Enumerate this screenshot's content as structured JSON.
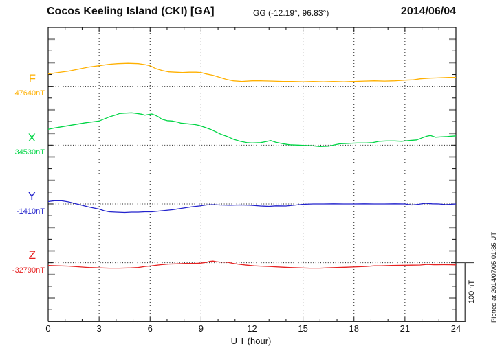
{
  "header": {
    "station_title": "Cocos Keeling Island (CKI)  [GA]",
    "coordinates": "GG (-12.19°,  96.83°)",
    "date": "2014/06/04"
  },
  "footer": {
    "plotted_at": "Plotted at 2014/07/05 01:35 UT"
  },
  "chart_data": {
    "type": "line",
    "title": "Cocos Keeling Island (CKI) [GA] magnetogram for 2014/06/04",
    "xlabel": "U T (hour)",
    "x_range": [
      0,
      24
    ],
    "x_ticks": [
      0,
      3,
      6,
      9,
      12,
      15,
      18,
      21,
      24
    ],
    "grid": "dotted vertical at 3h intervals, dotted horizontal at each component baseline",
    "scale_bar": {
      "label": "100 nT",
      "nT": 100
    },
    "points_format": "[UT_hour, nT_offset_from_baseline]",
    "series": [
      {
        "name": "F",
        "color": "#ffb000",
        "baseline_label": "47640nT",
        "baseline_nT": 47640,
        "points": [
          [
            0,
            21
          ],
          [
            0.6,
            23.4
          ],
          [
            1.2,
            25.7
          ],
          [
            1.8,
            29.2
          ],
          [
            2.4,
            32.7
          ],
          [
            3,
            35
          ],
          [
            3.6,
            37.4
          ],
          [
            4.1,
            38.5
          ],
          [
            4.7,
            39.1
          ],
          [
            5.3,
            38.5
          ],
          [
            5.7,
            36.8
          ],
          [
            6,
            35
          ],
          [
            6.3,
            30.4
          ],
          [
            6.7,
            26.9
          ],
          [
            7.1,
            24.5
          ],
          [
            7.5,
            23.9
          ],
          [
            7.9,
            23.4
          ],
          [
            8.3,
            23.9
          ],
          [
            8.7,
            23.9
          ],
          [
            9,
            23.4
          ],
          [
            9.3,
            21
          ],
          [
            9.7,
            18.7
          ],
          [
            10.1,
            15.2
          ],
          [
            10.5,
            11.7
          ],
          [
            10.9,
            9.3
          ],
          [
            11.4,
            8.2
          ],
          [
            12,
            9.3
          ],
          [
            12.5,
            9.3
          ],
          [
            13.2,
            8.8
          ],
          [
            13.8,
            8.2
          ],
          [
            14.4,
            8.2
          ],
          [
            15,
            7.6
          ],
          [
            15.6,
            8.2
          ],
          [
            16.2,
            7.6
          ],
          [
            16.8,
            8.2
          ],
          [
            17.4,
            7.6
          ],
          [
            18,
            8.2
          ],
          [
            18.6,
            8.8
          ],
          [
            19.2,
            9.3
          ],
          [
            19.8,
            8.8
          ],
          [
            20.4,
            9.3
          ],
          [
            21,
            10.5
          ],
          [
            21.5,
            11.1
          ],
          [
            21.9,
            12.8
          ],
          [
            22.5,
            14
          ],
          [
            23.1,
            14.6
          ],
          [
            23.6,
            15.2
          ],
          [
            24,
            15.2
          ]
        ]
      },
      {
        "name": "X",
        "color": "#00d545",
        "baseline_label": "34530nT",
        "baseline_nT": 34530,
        "points": [
          [
            0,
            26.9
          ],
          [
            0.4,
            29.2
          ],
          [
            1,
            32.1
          ],
          [
            1.6,
            35
          ],
          [
            2.2,
            38
          ],
          [
            3,
            40.9
          ],
          [
            3.3,
            44.4
          ],
          [
            3.6,
            47.9
          ],
          [
            4,
            51.4
          ],
          [
            4.2,
            53.7
          ],
          [
            4.5,
            54.3
          ],
          [
            4.9,
            54.9
          ],
          [
            5.1,
            54.3
          ],
          [
            5.5,
            52.6
          ],
          [
            5.7,
            50.8
          ],
          [
            5.9,
            52
          ],
          [
            6.1,
            52.9
          ],
          [
            6.3,
            50.8
          ],
          [
            6.5,
            47.9
          ],
          [
            6.7,
            43.8
          ],
          [
            7,
            41.5
          ],
          [
            7.3,
            40.9
          ],
          [
            7.6,
            39.1
          ],
          [
            7.8,
            37.4
          ],
          [
            8.2,
            36.2
          ],
          [
            8.6,
            35
          ],
          [
            8.9,
            33.3
          ],
          [
            9.2,
            30.4
          ],
          [
            9.6,
            26.3
          ],
          [
            9.9,
            22.2
          ],
          [
            10.2,
            18.1
          ],
          [
            10.6,
            14
          ],
          [
            10.9,
            9.9
          ],
          [
            11.3,
            6.4
          ],
          [
            11.7,
            4.1
          ],
          [
            12,
            3.5
          ],
          [
            12.5,
            4.1
          ],
          [
            12.8,
            5.8
          ],
          [
            13.1,
            7.6
          ],
          [
            13.4,
            4.7
          ],
          [
            13.8,
            2.3
          ],
          [
            14.2,
            0.6
          ],
          [
            14.7,
            0
          ],
          [
            15.1,
            -0.6
          ],
          [
            15.6,
            -1.2
          ],
          [
            16,
            -2.3
          ],
          [
            16.5,
            -1.8
          ],
          [
            16.9,
            0.6
          ],
          [
            17.2,
            2.3
          ],
          [
            17.7,
            2.9
          ],
          [
            18.2,
            3.5
          ],
          [
            18.7,
            3.5
          ],
          [
            19.1,
            4.1
          ],
          [
            19.5,
            6.4
          ],
          [
            19.9,
            7
          ],
          [
            20.4,
            7
          ],
          [
            20.8,
            6.4
          ],
          [
            21.2,
            7.6
          ],
          [
            21.7,
            8.8
          ],
          [
            22,
            12.3
          ],
          [
            22.3,
            15.2
          ],
          [
            22.5,
            16.4
          ],
          [
            22.8,
            13.4
          ],
          [
            23.1,
            14
          ],
          [
            23.5,
            14.6
          ],
          [
            24,
            15.8
          ]
        ]
      },
      {
        "name": "Y",
        "color": "#2222cc",
        "baseline_label": "-1410nT",
        "baseline_nT": -1410,
        "points": [
          [
            0,
            4.1
          ],
          [
            0.4,
            5.6
          ],
          [
            0.8,
            5.3
          ],
          [
            1.2,
            3.5
          ],
          [
            1.6,
            0.6
          ],
          [
            2,
            -2.3
          ],
          [
            2.4,
            -5.3
          ],
          [
            2.7,
            -7
          ],
          [
            3,
            -8.8
          ],
          [
            3.3,
            -11.7
          ],
          [
            3.6,
            -13.4
          ],
          [
            4,
            -14
          ],
          [
            4.5,
            -14.6
          ],
          [
            4.9,
            -14
          ],
          [
            5.3,
            -14
          ],
          [
            5.7,
            -13.4
          ],
          [
            6.1,
            -13.4
          ],
          [
            6.5,
            -12.3
          ],
          [
            6.9,
            -11.1
          ],
          [
            7.3,
            -9.9
          ],
          [
            7.7,
            -8.2
          ],
          [
            8.1,
            -6.4
          ],
          [
            8.5,
            -4.7
          ],
          [
            8.9,
            -3.5
          ],
          [
            9.3,
            -1.8
          ],
          [
            9.7,
            -1.2
          ],
          [
            10.1,
            -1.8
          ],
          [
            10.7,
            -2.1
          ],
          [
            11.3,
            -1.8
          ],
          [
            11.9,
            -2.1
          ],
          [
            12.5,
            -3.5
          ],
          [
            13,
            -4.1
          ],
          [
            13.4,
            -3.3
          ],
          [
            14,
            -3.5
          ],
          [
            14.6,
            -1.8
          ],
          [
            15,
            -0.6
          ],
          [
            15.6,
            0
          ],
          [
            16.2,
            0
          ],
          [
            16.8,
            0.2
          ],
          [
            17.4,
            0
          ],
          [
            18,
            0
          ],
          [
            18.6,
            0.2
          ],
          [
            19.2,
            0
          ],
          [
            19.8,
            0
          ],
          [
            20.4,
            0.2
          ],
          [
            21,
            0
          ],
          [
            21.4,
            -1.8
          ],
          [
            21.8,
            -0.6
          ],
          [
            22.2,
            1.2
          ],
          [
            22.6,
            0.2
          ],
          [
            23,
            0
          ],
          [
            23.4,
            -1.2
          ],
          [
            23.7,
            -0.6
          ],
          [
            24,
            0
          ]
        ]
      },
      {
        "name": "Z",
        "color": "#e62222",
        "baseline_label": "-32790nT",
        "baseline_nT": -32790,
        "points": [
          [
            0,
            -4.7
          ],
          [
            0.6,
            -5.3
          ],
          [
            1.2,
            -5.8
          ],
          [
            1.8,
            -7
          ],
          [
            2.4,
            -8.2
          ],
          [
            3,
            -8.8
          ],
          [
            3.6,
            -9.3
          ],
          [
            4.2,
            -9.3
          ],
          [
            4.9,
            -8.8
          ],
          [
            5.3,
            -8.2
          ],
          [
            5.7,
            -6.4
          ],
          [
            6.1,
            -5.3
          ],
          [
            6.6,
            -3.5
          ],
          [
            7.1,
            -2.3
          ],
          [
            7.6,
            -1.8
          ],
          [
            8.1,
            -1.2
          ],
          [
            8.6,
            -1.2
          ],
          [
            9,
            -0.6
          ],
          [
            9.3,
            0.6
          ],
          [
            9.5,
            2.3
          ],
          [
            9.7,
            2.9
          ],
          [
            9.9,
            1.8
          ],
          [
            10.1,
            1.2
          ],
          [
            10.4,
            1.2
          ],
          [
            10.6,
            0.6
          ],
          [
            10.9,
            -1.2
          ],
          [
            11.3,
            -2.9
          ],
          [
            11.7,
            -4.1
          ],
          [
            12.1,
            -5.3
          ],
          [
            12.5,
            -5.8
          ],
          [
            13,
            -6.4
          ],
          [
            13.8,
            -7.6
          ],
          [
            14.2,
            -8.2
          ],
          [
            14.8,
            -8.8
          ],
          [
            15.4,
            -9.3
          ],
          [
            16,
            -9.3
          ],
          [
            16.4,
            -8.8
          ],
          [
            17,
            -8.2
          ],
          [
            17.6,
            -7.6
          ],
          [
            18.2,
            -7
          ],
          [
            18.7,
            -6.4
          ],
          [
            19.2,
            -5.3
          ],
          [
            19.6,
            -5.3
          ],
          [
            20.2,
            -4.7
          ],
          [
            20.8,
            -4.4
          ],
          [
            21.4,
            -4.1
          ],
          [
            21.9,
            -3.9
          ],
          [
            22.3,
            -2.9
          ],
          [
            22.7,
            -3.5
          ],
          [
            23.3,
            -3.3
          ],
          [
            23.7,
            -3.5
          ],
          [
            24,
            -3.7
          ]
        ]
      }
    ]
  }
}
